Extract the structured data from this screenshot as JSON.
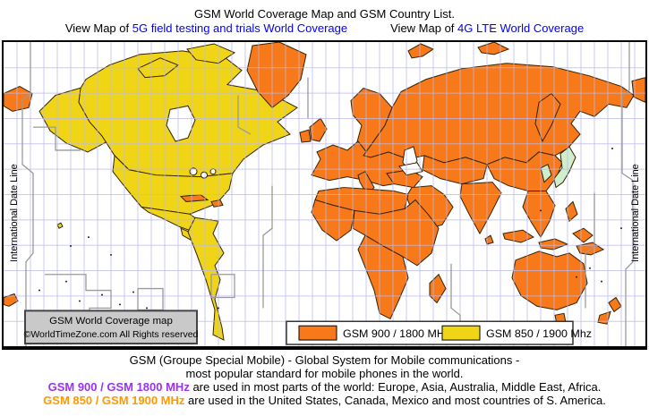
{
  "header": {
    "title": "GSM World Coverage Map and GSM Country List.",
    "view1_prefix": "View Map of ",
    "view1_link": "5G field testing and trials World Coverage",
    "view2_prefix": "View Map of ",
    "view2_link": "4G LTE World Coverage"
  },
  "map": {
    "date_line_label_left": "International Date Line",
    "date_line_label_right": "International Date Line",
    "watermark": {
      "line1": "GSM World Coverage map",
      "line2": "©WorldTimeZone.com All Rights reserved"
    },
    "legend": {
      "items": [
        {
          "label": "GSM 900 / 1800 MHz",
          "color": "#F8791A"
        },
        {
          "label": "GSM 850 / 1900 Mhz",
          "color": "#F0D517"
        }
      ]
    }
  },
  "colors": {
    "gsm900": "#F8791A",
    "gsm850": "#F0D517",
    "no_gsm": "#CFEECB",
    "graticule": "#B9B9E9",
    "timezone_line": "#9A9A9A",
    "land_border": "#332200",
    "link_blue": "#0000FF",
    "gsm900_text": "#9933EE",
    "gsm850_text": "#FF9900"
  },
  "footer": {
    "line1": "GSM (Groupe Special Mobile) - Global System for Mobile communications -",
    "line2": "most popular standard for mobile phones in the world.",
    "line3_colored": "GSM 900 / GSM 1800 MHz",
    "line3_rest": " are used in most parts of the world: Europe, Asia, Australia, Middle East, Africa.",
    "line4_colored": "GSM 850 / GSM 1900 MHz",
    "line4_rest": " are used in the United States, Canada, Mexico and most countries of S. America."
  }
}
